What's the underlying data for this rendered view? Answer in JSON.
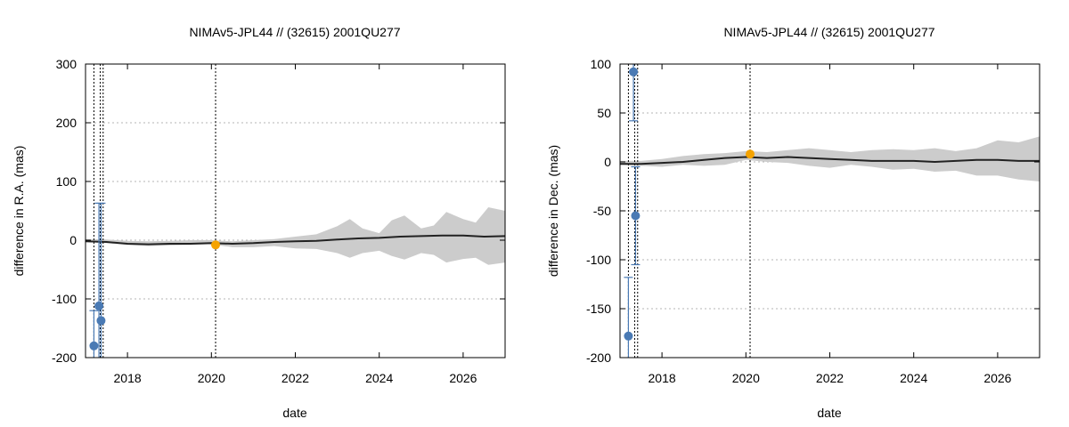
{
  "chart_data": [
    {
      "type": "line",
      "title": "NIMAv5-JPL44 // (32615) 2001QU277",
      "xlabel": "date",
      "ylabel": "difference in R.A. (mas)",
      "xlim": [
        2017.0,
        2027.0
      ],
      "ylim": [
        -200,
        300
      ],
      "xticks": [
        2018,
        2020,
        2022,
        2024,
        2026
      ],
      "yticks": [
        -200,
        -100,
        0,
        100,
        200,
        300
      ],
      "grid": "horizontal dotted",
      "vlines": [
        2017.2,
        2017.35,
        2017.42,
        2020.1
      ],
      "band": {
        "x": [
          2017.0,
          2017.5,
          2018.0,
          2018.5,
          2019.0,
          2019.5,
          2020.0,
          2020.5,
          2021.0,
          2021.5,
          2022.0,
          2022.5,
          2023.0,
          2023.3,
          2023.6,
          2024.0,
          2024.3,
          2024.6,
          2025.0,
          2025.3,
          2025.6,
          2026.0,
          2026.3,
          2026.6,
          2027.0
        ],
        "lower": [
          -3,
          -5,
          -8,
          -10,
          -9,
          -8,
          -7,
          -12,
          -12,
          -10,
          -14,
          -15,
          -22,
          -30,
          -22,
          -18,
          -27,
          -33,
          -22,
          -25,
          -38,
          -32,
          -30,
          -42,
          -38
        ],
        "upper": [
          2,
          1,
          -1,
          -2,
          -1,
          0,
          0,
          -2,
          0,
          2,
          6,
          10,
          24,
          36,
          20,
          12,
          34,
          42,
          20,
          25,
          48,
          36,
          30,
          56,
          50
        ]
      },
      "series": [
        {
          "x": [
            2017.0,
            2017.5,
            2018.0,
            2018.5,
            2019.0,
            2019.5,
            2020.0,
            2020.5,
            2021.0,
            2021.5,
            2022.0,
            2022.5,
            2023.0,
            2023.5,
            2024.0,
            2024.5,
            2025.0,
            2025.5,
            2026.0,
            2026.5,
            2027.0
          ],
          "y": [
            -2,
            -3,
            -6,
            -7,
            -6,
            -6,
            -5,
            -6,
            -5,
            -3,
            -2,
            -1,
            1,
            3,
            4,
            6,
            7,
            8,
            8,
            6,
            7
          ]
        }
      ],
      "observations": [
        {
          "x": 2017.2,
          "y": -180,
          "err": 60
        },
        {
          "x": 2017.32,
          "y": -112,
          "err": 175
        },
        {
          "x": 2017.37,
          "y": -137,
          "err": 200
        }
      ],
      "reference_point": {
        "x": 2020.1,
        "y": -8
      }
    },
    {
      "type": "line",
      "title": "NIMAv5-JPL44 // (32615) 2001QU277",
      "xlabel": "date",
      "ylabel": "difference in Dec. (mas)",
      "xlim": [
        2017.0,
        2027.0
      ],
      "ylim": [
        -200,
        100
      ],
      "xticks": [
        2018,
        2020,
        2022,
        2024,
        2026
      ],
      "yticks": [
        -200,
        -150,
        -100,
        -50,
        0,
        50,
        100
      ],
      "grid": "horizontal dotted",
      "vlines": [
        2017.2,
        2017.35,
        2017.42,
        2020.1
      ],
      "band": {
        "x": [
          2017.0,
          2017.5,
          2018.0,
          2018.5,
          2019.0,
          2019.5,
          2020.0,
          2020.5,
          2021.0,
          2021.5,
          2022.0,
          2022.5,
          2023.0,
          2023.5,
          2024.0,
          2024.5,
          2025.0,
          2025.5,
          2026.0,
          2026.5,
          2027.0
        ],
        "lower": [
          -3,
          -4,
          -5,
          -3,
          -4,
          -3,
          2,
          0,
          -1,
          -4,
          -6,
          -3,
          -5,
          -8,
          -7,
          -10,
          -9,
          -14,
          -14,
          -18,
          -20
        ],
        "upper": [
          1,
          1,
          3,
          6,
          8,
          9,
          11,
          10,
          12,
          14,
          12,
          10,
          12,
          13,
          12,
          14,
          11,
          14,
          22,
          20,
          26
        ]
      },
      "series": [
        {
          "x": [
            2017.0,
            2017.5,
            2018.0,
            2018.5,
            2019.0,
            2019.5,
            2020.0,
            2020.5,
            2021.0,
            2021.5,
            2022.0,
            2022.5,
            2023.0,
            2023.5,
            2024.0,
            2024.5,
            2025.0,
            2025.5,
            2026.0,
            2026.5,
            2027.0
          ],
          "y": [
            -2,
            -2,
            -1,
            0,
            2,
            4,
            5,
            4,
            5,
            4,
            3,
            2,
            1,
            1,
            1,
            0,
            1,
            2,
            2,
            1,
            1
          ]
        }
      ],
      "observations": [
        {
          "x": 2017.2,
          "y": -178,
          "err": 60
        },
        {
          "x": 2017.32,
          "y": 92,
          "err": 50
        },
        {
          "x": 2017.37,
          "y": -55,
          "err": 50
        }
      ],
      "reference_point": {
        "x": 2020.1,
        "y": 8
      }
    }
  ]
}
